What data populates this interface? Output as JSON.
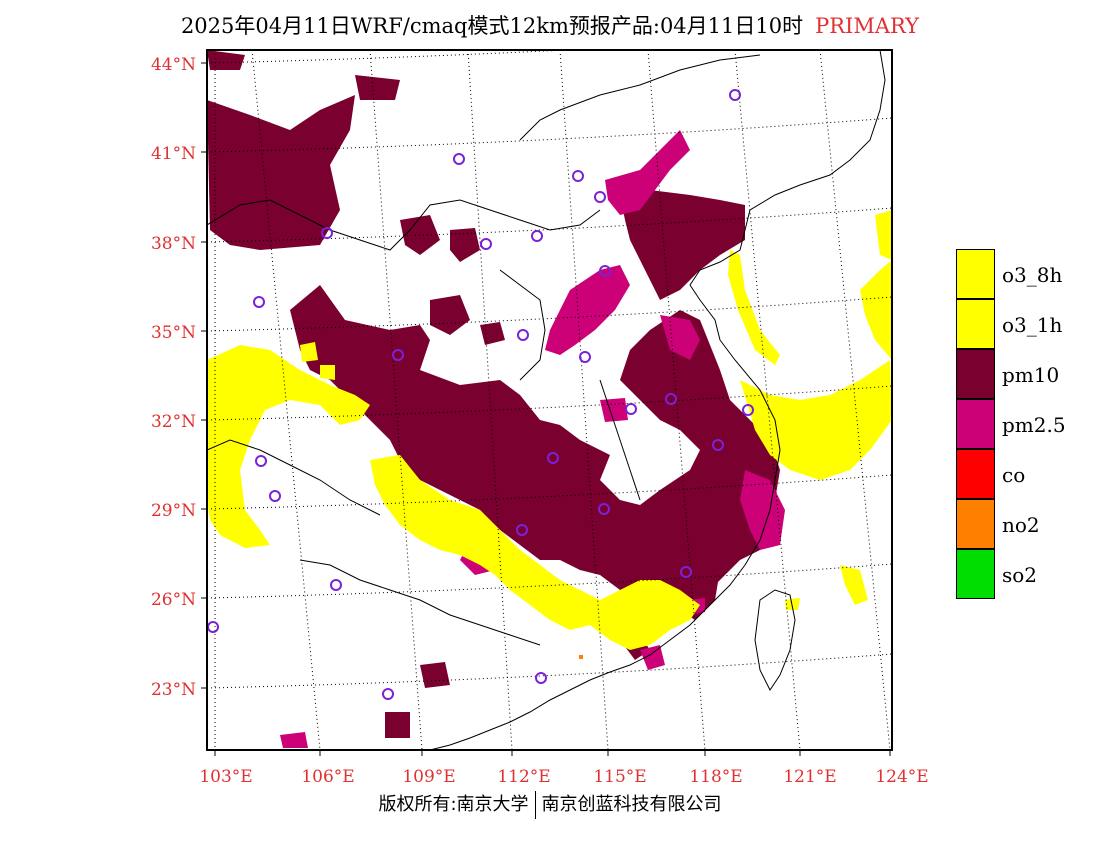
{
  "header": {
    "title": "2025年04月11日WRF/cmaq模式12km预报产品:04月11日10时",
    "tag": "PRIMARY"
  },
  "map": {
    "lat_labels": [
      "44°N",
      "41°N",
      "38°N",
      "35°N",
      "32°N",
      "29°N",
      "26°N",
      "23°N"
    ],
    "lon_labels": [
      "103°E",
      "106°E",
      "109°E",
      "112°E",
      "115°E",
      "118°E",
      "121°E",
      "124°E"
    ],
    "axis_label_color": "#e03030"
  },
  "legend": {
    "items": [
      {
        "label": "o3_8h",
        "color": "#ffff00"
      },
      {
        "label": "o3_1h",
        "color": "#ffff00"
      },
      {
        "label": "pm10",
        "color": "#7a0030"
      },
      {
        "label": "pm2.5",
        "color": "#cc0077"
      },
      {
        "label": "co",
        "color": "#ff0000"
      },
      {
        "label": "no2",
        "color": "#ff7f00"
      },
      {
        "label": "so2",
        "color": "#00dd00"
      }
    ]
  },
  "footer": {
    "left": "版权所有:南京大学",
    "right": "南京创蓝科技有限公司"
  }
}
